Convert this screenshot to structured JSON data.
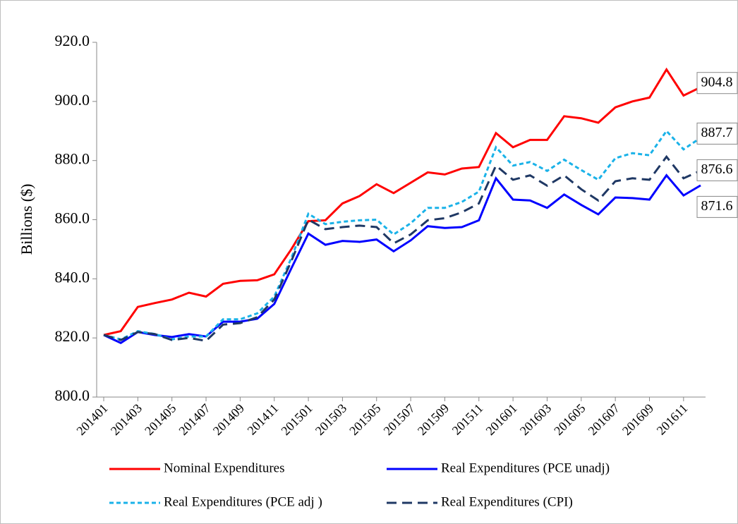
{
  "chart_data": {
    "type": "line",
    "y_label": "Billions ($)",
    "categories": [
      "201401",
      null,
      "201403",
      null,
      "201405",
      null,
      "201407",
      null,
      "201409",
      null,
      "201411",
      null,
      "201501",
      null,
      "201503",
      null,
      "201505",
      null,
      "201507",
      null,
      "201509",
      null,
      "201511",
      null,
      "201601",
      null,
      "201603",
      null,
      "201605",
      null,
      "201607",
      null,
      "201609",
      null,
      "201611",
      null
    ],
    "ylim": [
      800,
      920
    ],
    "yticks": [
      {
        "value": 800,
        "label": "800.0"
      },
      {
        "value": 820,
        "label": "820.0"
      },
      {
        "value": 840,
        "label": "840.0"
      },
      {
        "value": 860,
        "label": "860.0"
      },
      {
        "value": 880,
        "label": "880.0"
      },
      {
        "value": 900,
        "label": "900.0"
      },
      {
        "value": 920,
        "label": "920.0"
      }
    ],
    "series": [
      {
        "name": "Nominal Expenditures",
        "color": "#ff0000",
        "dash": "none",
        "values": [
          821,
          822.3,
          830.5,
          831.8,
          833,
          835.3,
          834,
          838.3,
          839.3,
          839.5,
          841.5,
          850,
          859.5,
          859.8,
          865.5,
          868,
          872,
          869,
          872.5,
          876,
          875.3,
          877.3,
          877.8,
          889.3,
          884.5,
          887,
          887,
          895,
          894.3,
          892.8,
          898,
          900,
          901.3,
          910.8,
          902,
          904.8
        ]
      },
      {
        "name": "Real Expenditures (PCE unadj)",
        "color": "#0000ff",
        "dash": "none",
        "values": [
          821,
          818.3,
          822,
          821,
          820.3,
          821.3,
          820.5,
          825.5,
          825.5,
          826.5,
          831.5,
          843.5,
          855.3,
          851.5,
          852.8,
          852.5,
          853.3,
          849.3,
          853,
          857.8,
          857.2,
          857.5,
          859.8,
          874,
          866.8,
          866.5,
          864,
          868.5,
          865,
          861.8,
          867.5,
          867.3,
          866.8,
          875,
          868.2,
          871.6
        ]
      },
      {
        "name": "Real Expenditures (PCE adj )",
        "color": "#1ab2e8",
        "dash": "6,4",
        "values": [
          821,
          819.5,
          822.3,
          821.3,
          819.5,
          820.5,
          820.5,
          826.3,
          826.3,
          828.3,
          834,
          847,
          862,
          858.5,
          859.3,
          859.8,
          860,
          855,
          858.8,
          864,
          864,
          866,
          869.5,
          884.5,
          878.3,
          879.5,
          876.5,
          880.3,
          876.8,
          873.5,
          880.8,
          882.5,
          881.8,
          890,
          883.8,
          887.7
        ]
      },
      {
        "name": "Real Expenditures (CPI)",
        "color": "#1f3864",
        "dash": "14,8",
        "values": [
          821,
          819.3,
          822,
          821.3,
          819.3,
          820,
          819,
          824.5,
          825,
          827,
          833,
          846,
          860,
          856.8,
          857.5,
          858,
          857.5,
          852,
          855,
          859.8,
          860.5,
          862.5,
          865.5,
          878.3,
          873.5,
          875,
          871.5,
          875,
          870.3,
          866.5,
          873,
          874,
          873.5,
          881.3,
          874,
          876.6
        ]
      }
    ]
  }
}
